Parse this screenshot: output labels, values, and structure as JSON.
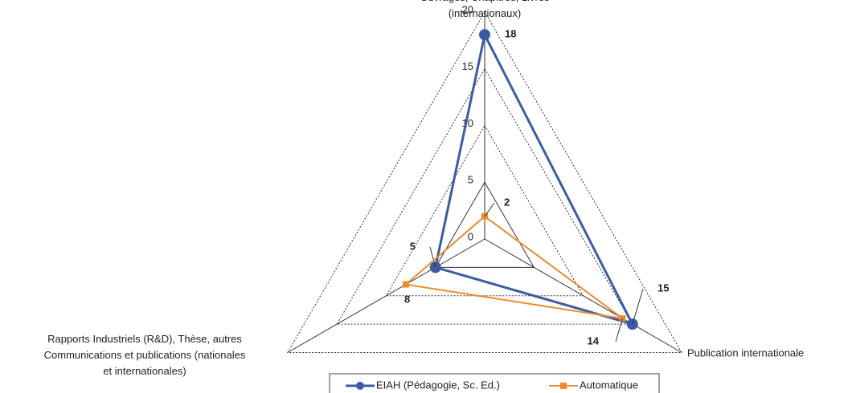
{
  "chart_data": {
    "type": "radar",
    "categories": [
      "Ouvrages, Chapitres, Livres (internationaux)",
      "Publication internationale",
      "Rapports Industriels (R&D), Thèse, autres Communications et publications (nationales et internationales)"
    ],
    "series": [
      {
        "name": "EIAH (Pédagogie, Sc. Ed.)",
        "color": "#3b5ca3",
        "values": [
          18,
          15,
          5
        ]
      },
      {
        "name": "Automatique",
        "color": "#f08a30",
        "values": [
          2,
          14,
          8
        ]
      }
    ],
    "ylim": [
      0,
      20
    ],
    "yticks": [
      0,
      5,
      10,
      15,
      20
    ],
    "grid": true,
    "legend": "bottom"
  }
}
